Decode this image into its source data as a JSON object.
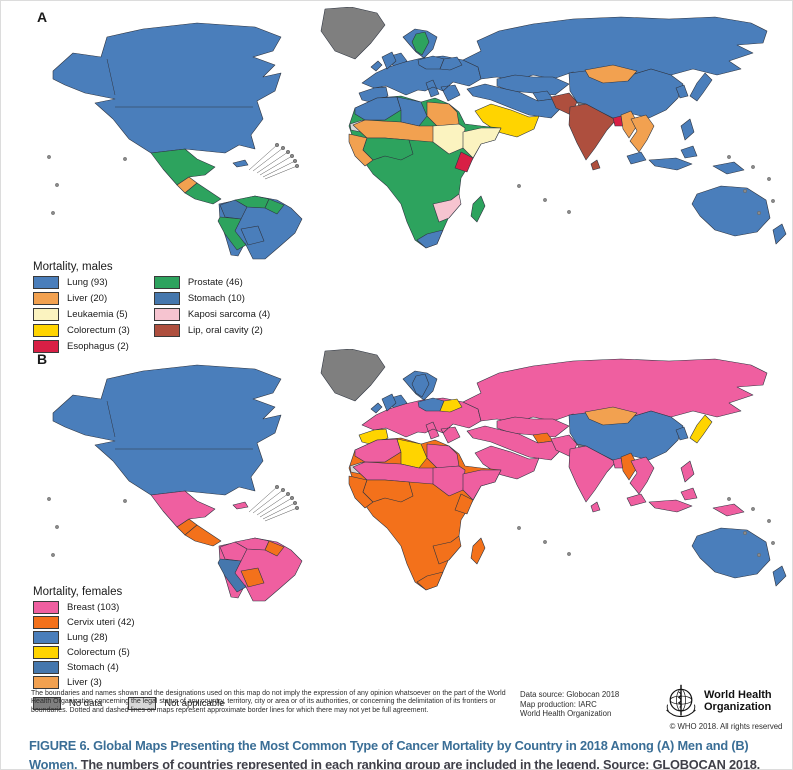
{
  "panel_a": {
    "label": "A",
    "legend_title": "Mortality, males",
    "legend_col1": [
      {
        "key": "lung",
        "label": "Lung (93)"
      },
      {
        "key": "liver",
        "label": "Liver (20)"
      },
      {
        "key": "leukaemia",
        "label": "Leukaemia (5)"
      },
      {
        "key": "colorectum",
        "label": "Colorectum (3)"
      },
      {
        "key": "esophagus",
        "label": "Esophagus (2)"
      }
    ],
    "legend_col2": [
      {
        "key": "prostate",
        "label": "Prostate (46)"
      },
      {
        "key": "stomach",
        "label": "Stomach (10)"
      },
      {
        "key": "kaposi",
        "label": "Kaposi sarcoma (4)"
      },
      {
        "key": "lip_oral",
        "label": "Lip, oral cavity (2)"
      }
    ],
    "regions": {
      "greenland": "no_data",
      "iceland": "lung",
      "north_america": "lung",
      "mexico": "prostate",
      "guatemala": "liver",
      "central_america": "prostate",
      "cuba": "lung",
      "sa_base": "lung",
      "venezuela": "prostate",
      "guyanas": "prostate",
      "colombia": "stomach",
      "ecuador_peru": "prostate",
      "bolivia": "lung",
      "europe_base": "lung",
      "spain": "lung",
      "uk_ireland": "lung",
      "scandinavia": "lung",
      "sweden": "prostate",
      "poland_baltics": "lung",
      "belarus": "lung",
      "russia": "lung",
      "kazakhstan": "lung",
      "uzbekistan": "lung",
      "turkey_iran": "lung",
      "saudi": "colorectum",
      "kashmir": "no_data",
      "china": "lung",
      "mongolia": "liver",
      "korea": "lung",
      "japan": "lung",
      "india": "lip_oral",
      "pakistan": "lip_oral",
      "bangladesh": "esophagus",
      "sri_lanka": "lip_oral",
      "myanmar": "liver",
      "indochina": "liver",
      "malaysia_indonesia": "lung",
      "philippines": "lung",
      "png": "lung",
      "australia": "lung",
      "new_zealand": "lung",
      "africa_base": "prostate",
      "maghreb": "lung",
      "libya": "lung",
      "egypt": "liver",
      "western_sahara": "not_applicable",
      "sahel": "liver",
      "sudan": "leukaemia",
      "horn": "leukaemia",
      "senegal_guinea": "liver",
      "ghana_nigeria": "prostate",
      "kenya": "esophagus",
      "zambia_mozambique": "kaposi",
      "south_africa": "lung",
      "madagascar": "prostate"
    }
  },
  "panel_b": {
    "label": "B",
    "legend_title": "Mortality, females",
    "legend_col1": [
      {
        "key": "breast",
        "label": "Breast (103)"
      },
      {
        "key": "cervix",
        "label": "Cervix uteri (42)"
      },
      {
        "key": "lung",
        "label": "Lung (28)"
      },
      {
        "key": "colorectum",
        "label": "Colorectum (5)"
      },
      {
        "key": "stomach",
        "label": "Stomach (4)"
      },
      {
        "key": "liver",
        "label": "Liver (3)"
      }
    ],
    "legend_col2": [],
    "regions": {
      "greenland": "no_data",
      "iceland": "lung",
      "north_america": "lung",
      "mexico": "breast",
      "guatemala": "cervix",
      "central_america": "cervix",
      "cuba": "breast",
      "sa_base": "breast",
      "venezuela": "breast",
      "guyanas": "cervix",
      "colombia": "breast",
      "ecuador_peru": "stomach",
      "bolivia": "cervix",
      "europe_base": "breast",
      "spain": "colorectum",
      "uk_ireland": "lung",
      "scandinavia": "lung",
      "sweden": "lung",
      "poland_baltics": "lung",
      "belarus": "colorectum",
      "russia": "breast",
      "kazakhstan": "breast",
      "uzbekistan": "cervix",
      "turkey_iran": "breast",
      "saudi": "breast",
      "kashmir": "no_data",
      "china": "lung",
      "mongolia": "liver",
      "korea": "lung",
      "japan": "colorectum",
      "india": "breast",
      "pakistan": "breast",
      "bangladesh": "breast",
      "sri_lanka": "breast",
      "myanmar": "cervix",
      "indochina": "breast",
      "malaysia_indonesia": "breast",
      "philippines": "breast",
      "png": "breast",
      "australia": "lung",
      "new_zealand": "lung",
      "africa_base": "cervix",
      "maghreb": "breast",
      "libya": "colorectum",
      "egypt": "breast",
      "western_sahara": "not_applicable",
      "sahel": "breast",
      "sudan": "breast",
      "horn": "breast",
      "senegal_guinea": "cervix",
      "ghana_nigeria": "cervix",
      "kenya": "cervix",
      "zambia_mozambique": "cervix",
      "south_africa": "cervix",
      "madagascar": "cervix"
    }
  },
  "extra_legend": [
    {
      "key": "no_data",
      "label": "No data"
    },
    {
      "key": "not_applicable",
      "label": "Not applicable"
    }
  ],
  "category_colors": {
    "lung": "#4A7EBB",
    "liver": "#F2A150",
    "leukaemia": "#FBF3C0",
    "colorectum": "#FFD400",
    "esophagus": "#D81F45",
    "prostate": "#2DA35E",
    "stomach": "#4577AD",
    "kaposi": "#F6C4D0",
    "lip_oral": "#AE4F3E",
    "breast": "#EF5FA0",
    "cervix": "#F3711B",
    "no_data": "#7F7F7F",
    "not_applicable": "#D8D8D8"
  },
  "footer": {
    "disclaimer": "The boundaries and names shown and the designations used on this map do not imply the expression of any opinion whatsoever on the part of the World Health Organization concerning the legal status of any country, territory, city or area or of its authorities, or concerning the delimitation of its frontiers or boundaries. Dotted and dashed lines on maps represent approximate border lines for which there may not yet be full agreement.",
    "source_lines": [
      "Data source: Globocan 2018",
      "Map production: IARC",
      "World Health Organization"
    ],
    "who": {
      "line1": "World Health",
      "line2": "Organization",
      "copyright": "© WHO 2018. All rights reserved"
    }
  },
  "caption": {
    "highlight": "FIGURE 6. Global Maps Presenting the Most Common Type of Cancer Mortality by Country in 2018 Among (A) Men and (B) Women.",
    "rest": " The numbers of countries represented in each ranking group are included in the legend. Source: GLOBOCAN 2018."
  },
  "chart_data": [
    {
      "type": "choropleth-map",
      "title": "Mortality, males",
      "categories": [
        "Lung",
        "Liver",
        "Leukaemia",
        "Colorectum",
        "Esophagus",
        "Prostate",
        "Stomach",
        "Kaposi sarcoma",
        "Lip, oral cavity"
      ],
      "values": [
        93,
        20,
        5,
        3,
        2,
        46,
        10,
        4,
        2
      ],
      "value_label": "number of countries where this cancer is the most common cause of cancer mortality"
    },
    {
      "type": "choropleth-map",
      "title": "Mortality, females",
      "categories": [
        "Breast",
        "Cervix uteri",
        "Lung",
        "Colorectum",
        "Stomach",
        "Liver"
      ],
      "values": [
        103,
        42,
        28,
        5,
        4,
        3
      ],
      "value_label": "number of countries where this cancer is the most common cause of cancer mortality"
    }
  ]
}
